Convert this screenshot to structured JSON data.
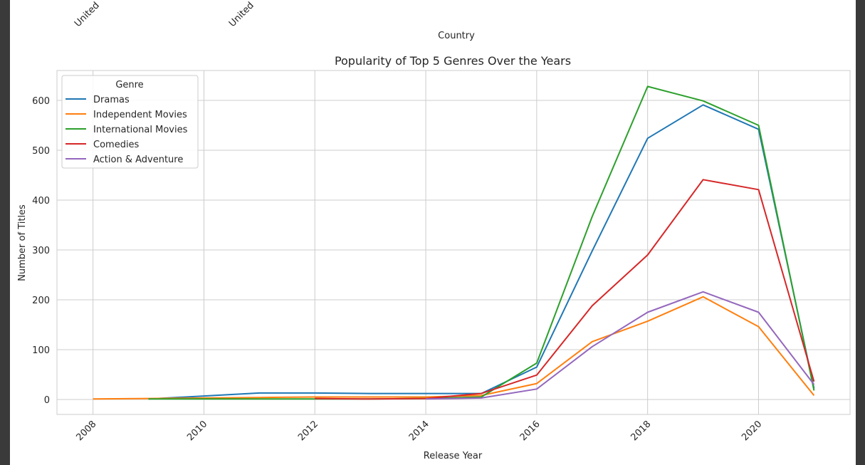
{
  "previous_chart_fragment": {
    "xlabel": "Country",
    "tick_labels": [
      "United",
      "United"
    ]
  },
  "chart_data": {
    "type": "line",
    "title": "Popularity of Top 5 Genres Over the Years",
    "xlabel": "Release Year",
    "ylabel": "Number of Titles",
    "xlim": [
      2007.35,
      2021.65
    ],
    "ylim": [
      -30,
      660
    ],
    "xticks": [
      2008,
      2010,
      2012,
      2014,
      2016,
      2018,
      2020
    ],
    "yticks": [
      0,
      100,
      200,
      300,
      400,
      500,
      600
    ],
    "grid": true,
    "legend": {
      "title": "Genre",
      "position": "top-left"
    },
    "series": [
      {
        "name": "Dramas",
        "color": "#1f77b4",
        "x": [
          2009,
          2010,
          2011,
          2012,
          2013,
          2014,
          2015,
          2016,
          2017,
          2018,
          2019,
          2020,
          2021
        ],
        "y": [
          1,
          7,
          13,
          13,
          12,
          12,
          12,
          65,
          298,
          524,
          591,
          542,
          22
        ]
      },
      {
        "name": "Independent Movies",
        "color": "#ff7f0e",
        "x": [
          2008,
          2009,
          2010,
          2011,
          2012,
          2013,
          2014,
          2015,
          2016,
          2017,
          2018,
          2019,
          2020,
          2021
        ],
        "y": [
          1,
          2,
          3,
          4,
          5,
          5,
          5,
          8,
          32,
          116,
          157,
          206,
          146,
          8
        ]
      },
      {
        "name": "International Movies",
        "color": "#2ca02c",
        "x": [
          2009,
          2010,
          2011,
          2012,
          2013,
          2014,
          2015,
          2016,
          2017,
          2018,
          2019,
          2020,
          2021
        ],
        "y": [
          1,
          1,
          1,
          1,
          1,
          2,
          5,
          73,
          367,
          628,
          599,
          550,
          18
        ]
      },
      {
        "name": "Comedies",
        "color": "#d62728",
        "x": [
          2012,
          2013,
          2014,
          2015,
          2016,
          2017,
          2018,
          2019,
          2020,
          2021
        ],
        "y": [
          2,
          1,
          2,
          12,
          49,
          188,
          290,
          441,
          421,
          36
        ]
      },
      {
        "name": "Action & Adventure",
        "color": "#9467bd",
        "x": [
          2014,
          2015,
          2016,
          2017,
          2018,
          2019,
          2020,
          2021
        ],
        "y": [
          1,
          3,
          21,
          106,
          175,
          216,
          175,
          30
        ]
      }
    ]
  }
}
